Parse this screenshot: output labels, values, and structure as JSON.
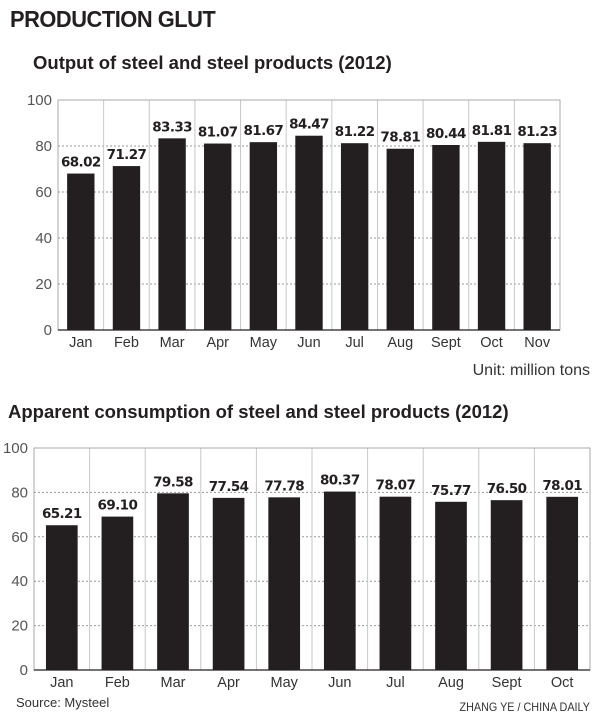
{
  "headline": "PRODUCTION GLUT",
  "unit": "Unit: million tons",
  "source": "Source: Mysteel",
  "credit": "ZHANG YE / CHINA DAILY",
  "colors": {
    "bar": "#231f20",
    "grid": "#999999",
    "separator": "#c8c8c8"
  },
  "chart_data": [
    {
      "type": "bar",
      "title": "Output of steel and steel products (2012)",
      "xlabel": "",
      "ylabel": "",
      "ylim": [
        0,
        100
      ],
      "yticks": [
        0,
        20,
        40,
        60,
        80,
        100
      ],
      "grid": true,
      "categories": [
        "Jan",
        "Feb",
        "Mar",
        "Apr",
        "May",
        "Jun",
        "Jul",
        "Aug",
        "Sept",
        "Oct",
        "Nov"
      ],
      "values": [
        68.02,
        71.27,
        83.33,
        81.07,
        81.67,
        84.47,
        81.22,
        78.81,
        80.44,
        81.81,
        81.23
      ],
      "labels": [
        "68.02",
        "71.27",
        "83.33",
        "81.07",
        "81.67",
        "84.47",
        "81.22",
        "78.81",
        "80.44",
        "81.81",
        "81.23"
      ]
    },
    {
      "type": "bar",
      "title": "Apparent consumption of steel and steel products (2012)",
      "xlabel": "",
      "ylabel": "",
      "ylim": [
        0,
        100
      ],
      "yticks": [
        0,
        20,
        40,
        60,
        80,
        100
      ],
      "grid": true,
      "categories": [
        "Jan",
        "Feb",
        "Mar",
        "Apr",
        "May",
        "Jun",
        "Jul",
        "Aug",
        "Sept",
        "Oct"
      ],
      "values": [
        65.21,
        69.1,
        79.58,
        77.54,
        77.78,
        80.37,
        78.07,
        75.77,
        76.5,
        78.01
      ],
      "labels": [
        "65.21",
        "69.10",
        "79.58",
        "77.54",
        "77.78",
        "80.37",
        "78.07",
        "75.77",
        "76.50",
        "78.01"
      ]
    }
  ]
}
